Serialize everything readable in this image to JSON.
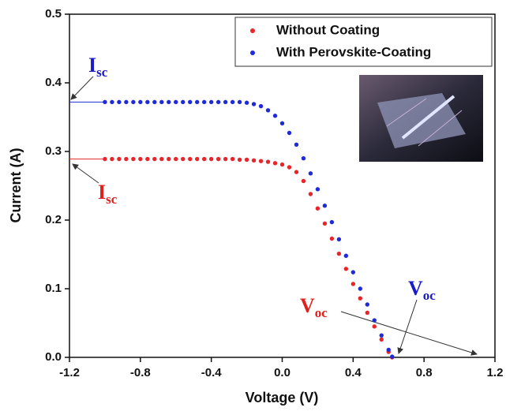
{
  "chart_data": {
    "type": "scatter",
    "xlabel": "Voltage (V)",
    "ylabel": "Current (A)",
    "xlim": [
      -1.2,
      1.2
    ],
    "xticks": [
      -1.2,
      -0.8,
      -0.4,
      {
        "value": 0,
        "label": "0.0"
      },
      0.4,
      0.8,
      1.2
    ],
    "ylim": [
      0,
      0.5
    ],
    "yticks": [
      {
        "value": 0,
        "label": "0.0"
      },
      0.1,
      0.2,
      0.3,
      0.4,
      0.5
    ],
    "legend": "upper right",
    "x": [
      -1.0,
      -0.96,
      -0.92,
      -0.88,
      -0.84,
      -0.8,
      -0.76,
      -0.72,
      -0.68,
      -0.64,
      -0.6,
      -0.56,
      -0.52,
      -0.48,
      -0.44,
      -0.4,
      -0.36,
      -0.32,
      -0.28,
      -0.24,
      -0.2,
      -0.16,
      -0.12,
      -0.08,
      -0.04,
      0,
      0.04,
      0.08,
      0.12,
      0.16,
      0.2,
      0.24,
      0.28,
      0.32,
      0.36,
      0.4,
      0.44,
      0.48,
      0.52,
      0.56,
      0.6,
      0.62
    ],
    "series": [
      {
        "name": "Without Coating",
        "color": "#e8262a",
        "values": [
          0.289,
          0.289,
          0.289,
          0.289,
          0.289,
          0.289,
          0.289,
          0.289,
          0.289,
          0.289,
          0.289,
          0.289,
          0.289,
          0.289,
          0.289,
          0.289,
          0.289,
          0.289,
          0.289,
          0.288,
          0.288,
          0.287,
          0.286,
          0.285,
          0.283,
          0.281,
          0.277,
          0.27,
          0.257,
          0.238,
          0.217,
          0.195,
          0.173,
          0.151,
          0.129,
          0.107,
          0.086,
          0.065,
          0.045,
          0.026,
          0.008,
          0
        ]
      },
      {
        "name": "With Perovskite-Coating",
        "color": "#1f2bd6",
        "values": [
          0.372,
          0.372,
          0.372,
          0.372,
          0.372,
          0.372,
          0.372,
          0.372,
          0.372,
          0.372,
          0.372,
          0.372,
          0.372,
          0.372,
          0.372,
          0.372,
          0.372,
          0.372,
          0.372,
          0.372,
          0.371,
          0.369,
          0.366,
          0.36,
          0.352,
          0.341,
          0.327,
          0.31,
          0.29,
          0.268,
          0.245,
          0.221,
          0.197,
          0.172,
          0.148,
          0.124,
          0.1,
          0.077,
          0.054,
          0.032,
          0.011,
          0.001
        ]
      }
    ],
    "annotations": [
      {
        "text": "I",
        "sub": "sc",
        "color": "#1a1ac8"
      },
      {
        "text": "I",
        "sub": "sc",
        "color": "#e0201c"
      },
      {
        "text": "V",
        "sub": "oc",
        "color": "#e0201c"
      },
      {
        "text": "V",
        "sub": "oc",
        "color": "#1a1ac8"
      }
    ]
  }
}
